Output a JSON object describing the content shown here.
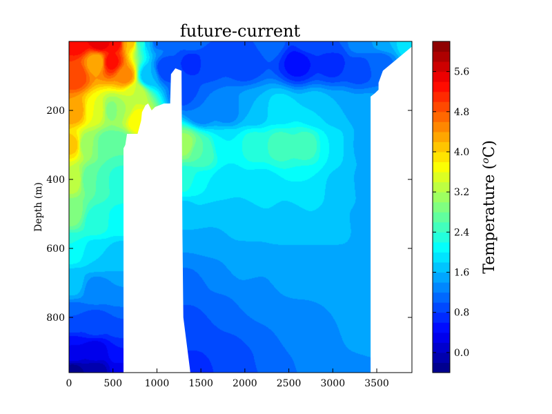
{
  "chart_data": {
    "type": "heatmap",
    "title": "future-current",
    "xlabel": "",
    "ylabel": "Depth (m)",
    "xlim": [
      0,
      3900
    ],
    "ylim": [
      960,
      0
    ],
    "x_ticks": [
      0,
      500,
      1000,
      1500,
      2000,
      2500,
      3000,
      3500
    ],
    "y_ticks": [
      200,
      400,
      600,
      800
    ],
    "colorbar": {
      "label": "Temperature (°C)",
      "label_prefix": "Temperature (",
      "label_sup": "o",
      "label_suffix": "C)",
      "range": [
        -0.4,
        6.2
      ],
      "ticks": [
        "0.0",
        "0.8",
        "1.6",
        "2.4",
        "3.2",
        "4.0",
        "4.8",
        "5.6"
      ],
      "levels": [
        -0.4,
        -0.2,
        0.0,
        0.2,
        0.4,
        0.6,
        0.8,
        1.0,
        1.2,
        1.4,
        1.6,
        1.8,
        2.0,
        2.2,
        2.4,
        2.6,
        2.8,
        3.0,
        3.2,
        3.4,
        3.6,
        3.8,
        4.0,
        4.2,
        4.4,
        4.6,
        4.8,
        5.0,
        5.2,
        5.4,
        5.6,
        5.8,
        6.0,
        6.2
      ],
      "colormap": "jet"
    },
    "no_data_regions": [
      {
        "name": "ridge",
        "outline": [
          [
            620,
            960
          ],
          [
            620,
            310
          ],
          [
            640,
            300
          ],
          [
            660,
            268
          ],
          [
            780,
            268
          ],
          [
            820,
            230
          ],
          [
            830,
            205
          ],
          [
            870,
            185
          ],
          [
            900,
            180
          ],
          [
            940,
            200
          ],
          [
            980,
            190
          ],
          [
            1080,
            180
          ],
          [
            1150,
            180
          ],
          [
            1160,
            95
          ],
          [
            1210,
            78
          ],
          [
            1280,
            85
          ],
          [
            1290,
            560
          ],
          [
            1300,
            800
          ],
          [
            1340,
            880
          ],
          [
            1380,
            960
          ]
        ]
      },
      {
        "name": "eastern-slope",
        "outline": [
          [
            3430,
            960
          ],
          [
            3430,
            160
          ],
          [
            3480,
            150
          ],
          [
            3520,
            140
          ],
          [
            3520,
            120
          ],
          [
            3570,
            85
          ],
          [
            3900,
            15
          ],
          [
            3900,
            960
          ]
        ]
      }
    ],
    "field_description": "temperature in deg C over distance (x) and depth (y)",
    "anchors": [
      [
        100,
        0,
        5.4
      ],
      [
        350,
        0,
        5.6
      ],
      [
        520,
        0,
        5.4
      ],
      [
        700,
        0,
        4.2
      ],
      [
        820,
        0,
        2.4
      ],
      [
        900,
        0,
        1.6
      ],
      [
        1000,
        0,
        1.1
      ],
      [
        1250,
        0,
        1.0
      ],
      [
        1400,
        0,
        1.1
      ],
      [
        1700,
        0,
        1.0
      ],
      [
        2000,
        0,
        1.0
      ],
      [
        2300,
        0,
        1.1
      ],
      [
        2700,
        0,
        0.9
      ],
      [
        3000,
        0,
        1.0
      ],
      [
        3300,
        0,
        1.3
      ],
      [
        3600,
        0,
        1.6
      ],
      [
        3850,
        0,
        2.0
      ],
      [
        60,
        100,
        5.0
      ],
      [
        320,
        60,
        4.2
      ],
      [
        480,
        60,
        5.3
      ],
      [
        650,
        100,
        4.5
      ],
      [
        760,
        150,
        3.4
      ],
      [
        900,
        100,
        1.6
      ],
      [
        1100,
        80,
        0.8
      ],
      [
        1400,
        60,
        0.7
      ],
      [
        1600,
        60,
        0.9
      ],
      [
        2000,
        60,
        0.8
      ],
      [
        2600,
        60,
        0.5
      ],
      [
        3000,
        60,
        0.7
      ],
      [
        3300,
        80,
        0.9
      ],
      [
        3550,
        60,
        1.1
      ],
      [
        60,
        200,
        4.4
      ],
      [
        300,
        200,
        3.6
      ],
      [
        500,
        200,
        2.9
      ],
      [
        600,
        200,
        3.2
      ],
      [
        780,
        230,
        3.8
      ],
      [
        1320,
        150,
        0.9
      ],
      [
        1500,
        200,
        1.2
      ],
      [
        1800,
        200,
        1.3
      ],
      [
        2100,
        200,
        1.6
      ],
      [
        2400,
        200,
        1.9
      ],
      [
        2800,
        200,
        1.8
      ],
      [
        3100,
        200,
        1.6
      ],
      [
        3380,
        200,
        1.5
      ],
      [
        40,
        300,
        4.1
      ],
      [
        200,
        300,
        3.0
      ],
      [
        450,
        300,
        2.6
      ],
      [
        600,
        300,
        2.6
      ],
      [
        1320,
        300,
        3.1
      ],
      [
        1500,
        320,
        2.6
      ],
      [
        1800,
        300,
        2.0
      ],
      [
        2100,
        300,
        2.3
      ],
      [
        2400,
        300,
        2.5
      ],
      [
        2700,
        300,
        2.5
      ],
      [
        3000,
        300,
        2.0
      ],
      [
        3250,
        300,
        1.6
      ],
      [
        3400,
        300,
        1.5
      ],
      [
        40,
        400,
        3.4
      ],
      [
        250,
        400,
        2.6
      ],
      [
        500,
        400,
        2.4
      ],
      [
        600,
        400,
        2.3
      ],
      [
        1320,
        400,
        2.3
      ],
      [
        1500,
        420,
        2.0
      ],
      [
        1800,
        420,
        1.8
      ],
      [
        2200,
        420,
        1.9
      ],
      [
        2700,
        420,
        2.0
      ],
      [
        3100,
        430,
        1.7
      ],
      [
        3400,
        420,
        1.5
      ],
      [
        40,
        500,
        2.9
      ],
      [
        300,
        520,
        2.3
      ],
      [
        600,
        520,
        2.1
      ],
      [
        1320,
        500,
        1.7
      ],
      [
        1600,
        520,
        1.6
      ],
      [
        2000,
        520,
        1.7
      ],
      [
        2500,
        520,
        1.7
      ],
      [
        3000,
        540,
        1.7
      ],
      [
        3400,
        520,
        1.5
      ],
      [
        40,
        600,
        2.2
      ],
      [
        300,
        620,
        1.8
      ],
      [
        600,
        620,
        1.7
      ],
      [
        1320,
        600,
        1.4
      ],
      [
        1600,
        620,
        1.4
      ],
      [
        2000,
        640,
        1.5
      ],
      [
        2500,
        660,
        1.5
      ],
      [
        3000,
        640,
        1.5
      ],
      [
        3400,
        620,
        1.5
      ],
      [
        40,
        700,
        1.7
      ],
      [
        300,
        720,
        1.3
      ],
      [
        600,
        720,
        1.4
      ],
      [
        1320,
        700,
        1.1
      ],
      [
        1700,
        720,
        1.2
      ],
      [
        2100,
        740,
        1.3
      ],
      [
        2600,
        760,
        1.4
      ],
      [
        3000,
        780,
        1.4
      ],
      [
        3400,
        760,
        1.5
      ],
      [
        40,
        800,
        1.0
      ],
      [
        300,
        820,
        0.9
      ],
      [
        600,
        820,
        1.0
      ],
      [
        1340,
        820,
        0.9
      ],
      [
        1800,
        820,
        1.0
      ],
      [
        2200,
        840,
        1.2
      ],
      [
        2600,
        860,
        1.3
      ],
      [
        3000,
        880,
        1.4
      ],
      [
        3400,
        860,
        1.5
      ],
      [
        40,
        900,
        0.4
      ],
      [
        300,
        900,
        0.3
      ],
      [
        600,
        900,
        0.6
      ],
      [
        1400,
        900,
        0.8
      ],
      [
        1900,
        920,
        0.9
      ],
      [
        2300,
        920,
        1.1
      ],
      [
        2800,
        920,
        1.3
      ],
      [
        3300,
        920,
        1.4
      ],
      [
        40,
        960,
        -0.3
      ],
      [
        300,
        960,
        -0.2
      ],
      [
        600,
        960,
        0.3
      ],
      [
        1400,
        960,
        0.7
      ],
      [
        1900,
        960,
        0.8
      ],
      [
        2300,
        960,
        1.0
      ],
      [
        2800,
        960,
        1.2
      ],
      [
        3300,
        960,
        1.3
      ]
    ]
  }
}
